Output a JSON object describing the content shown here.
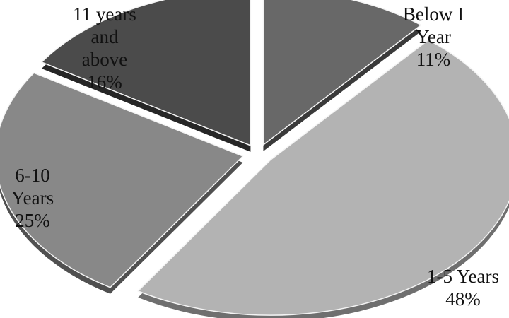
{
  "chart_data": {
    "type": "pie",
    "style": "3d-exploded",
    "legend": "none",
    "slices": [
      {
        "label": [
          "Below I",
          "Year"
        ],
        "value": 11,
        "value_label": "11%",
        "color": "#686868",
        "side_color": "#3a3a3a"
      },
      {
        "label": [
          "1-5 Years"
        ],
        "value": 48,
        "value_label": "48%",
        "color": "#b3b3b3",
        "side_color": "#6f6f6f"
      },
      {
        "label": [
          "6-10",
          "Years"
        ],
        "value": 25,
        "value_label": "25%",
        "color": "#888888",
        "side_color": "#505050"
      },
      {
        "label": [
          "11 years",
          "and",
          "above"
        ],
        "value": 16,
        "value_label": "16%",
        "color": "#4b4b4b",
        "side_color": "#262626"
      }
    ]
  }
}
